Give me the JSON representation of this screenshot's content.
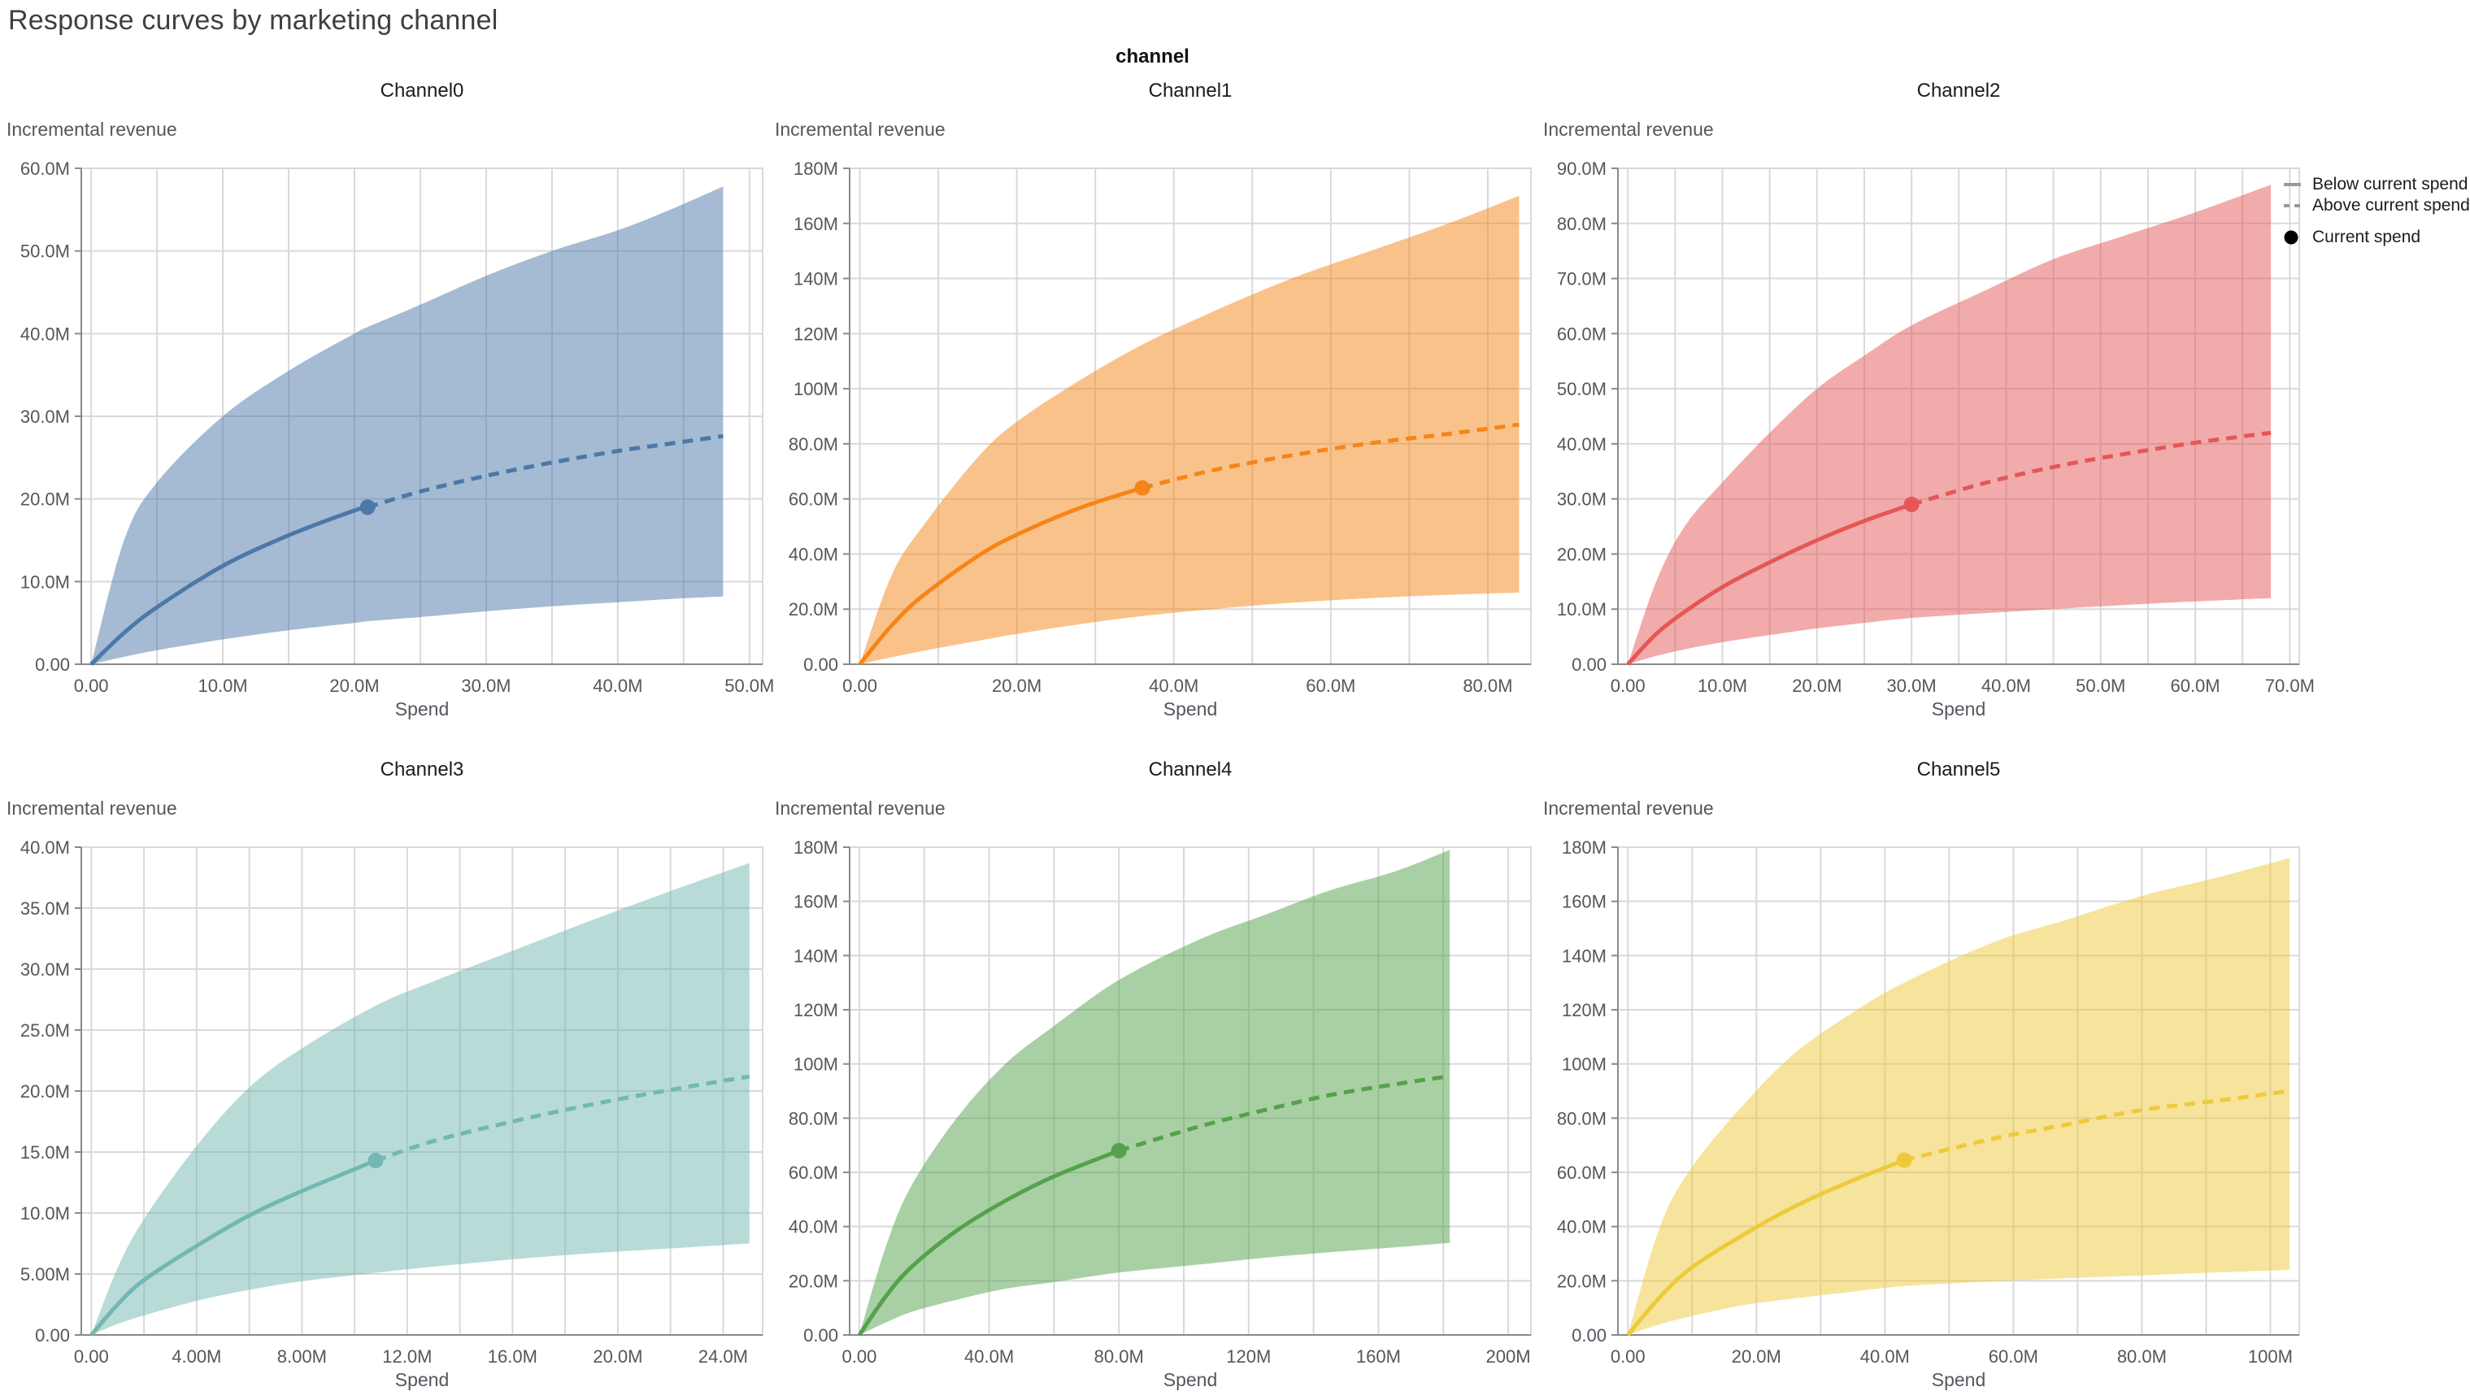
{
  "page": {
    "title": "Response curves by marketing channel",
    "facet_header": "channel"
  },
  "axis_titles": {
    "x": "Spend",
    "y": "Incremental revenue"
  },
  "legend": {
    "line_color": "#999999",
    "dot_color": "#000000",
    "items": [
      {
        "label": "Below current spend",
        "symbol": "solid-line"
      },
      {
        "label": "Above current spend",
        "symbol": "dashed-line"
      },
      {
        "label": "Current spend",
        "symbol": "dot"
      }
    ]
  },
  "style": {
    "grid_color": "#d9d9d9",
    "domain_color": "#8a8a8a",
    "tick_label_color": "#55565e",
    "axis_title_color": "#55565e",
    "subplot_title_color": "#1b1b1f",
    "band_opacity": 0.5,
    "line_width": 5,
    "dot_radius": 9.5,
    "dash_pattern": "13 9"
  },
  "chart_data": {
    "type": "line",
    "subtype": "response-curves-with-confidence-band",
    "units": "millions (M)",
    "title": "Response curves by marketing channel",
    "xlabel": "Spend",
    "ylabel": "Incremental revenue",
    "legend_entries": [
      "Below current spend",
      "Above current spend",
      "Current spend"
    ],
    "charts": [
      {
        "title": "Channel0",
        "color": "#4c78a8",
        "x_domain": [
          -0.75,
          51
        ],
        "y_domain": [
          0,
          60
        ],
        "x_ticks": {
          "values": [
            0,
            5,
            10,
            15,
            20,
            25,
            30,
            35,
            40,
            45,
            50
          ],
          "labels": [
            "0.00",
            "",
            "10.0M",
            "",
            "20.0M",
            "",
            "30.0M",
            "",
            "40.0M",
            "",
            "50.0M"
          ]
        },
        "y_ticks": {
          "values": [
            0,
            10,
            20,
            30,
            40,
            50,
            60
          ],
          "labels": [
            "0.00",
            "10.0M",
            "20.0M",
            "30.0M",
            "40.0M",
            "50.0M",
            "60.0M"
          ]
        },
        "current_spend": {
          "x": 21,
          "y": 19
        },
        "x": [
          0,
          2.5,
          5,
          10,
          15,
          20,
          21,
          25,
          30,
          35,
          40,
          44,
          48
        ],
        "mid": [
          0,
          3.8,
          6.9,
          11.9,
          15.6,
          18.6,
          19,
          20.9,
          22.8,
          24.4,
          25.8,
          26.7,
          27.6
        ],
        "upper": [
          0,
          15,
          22,
          30,
          35.5,
          40,
          40.8,
          43.5,
          47,
          50,
          52.5,
          55,
          57.8
        ],
        "lower": [
          0,
          0.9,
          1.7,
          3,
          4.1,
          5,
          5.2,
          5.7,
          6.4,
          7,
          7.5,
          7.9,
          8.2
        ]
      },
      {
        "title": "Channel1",
        "color": "#f58518",
        "x_domain": [
          -1.3,
          85.5
        ],
        "y_domain": [
          0,
          180
        ],
        "x_ticks": {
          "values": [
            0,
            10,
            20,
            30,
            40,
            50,
            60,
            70,
            80
          ],
          "labels": [
            "0.00",
            "",
            "20.0M",
            "",
            "40.0M",
            "",
            "60.0M",
            "",
            "80.0M"
          ]
        },
        "y_ticks": {
          "values": [
            0,
            20,
            40,
            60,
            80,
            100,
            120,
            140,
            160,
            180
          ],
          "labels": [
            "0.00",
            "20.0M",
            "40.0M",
            "60.0M",
            "80.0M",
            "100M",
            "120M",
            "140M",
            "160M",
            "180M"
          ]
        },
        "current_spend": {
          "x": 36,
          "y": 64
        },
        "x": [
          0,
          4,
          8,
          15,
          20,
          28,
          36,
          45,
          55,
          65,
          75,
          84
        ],
        "mid": [
          0,
          13.9,
          24.8,
          39.2,
          47,
          56.7,
          64,
          70.4,
          75.8,
          80.2,
          83.6,
          87
        ],
        "upper": [
          0,
          32,
          50,
          75,
          88,
          103,
          116,
          128,
          140,
          150,
          160,
          170
        ],
        "lower": [
          0,
          2.5,
          4.8,
          8.5,
          11,
          14.5,
          17.5,
          20,
          22.3,
          24,
          25.2,
          26
        ]
      },
      {
        "title": "Channel2",
        "color": "#e45756",
        "x_domain": [
          -1.05,
          71
        ],
        "y_domain": [
          0,
          90
        ],
        "x_ticks": {
          "values": [
            0,
            5,
            10,
            15,
            20,
            25,
            30,
            35,
            40,
            45,
            50,
            55,
            60,
            65,
            70
          ],
          "labels": [
            "0.00",
            "",
            "10.0M",
            "",
            "20.0M",
            "",
            "30.0M",
            "",
            "40.0M",
            "",
            "50.0M",
            "",
            "60.0M",
            "",
            "70.0M"
          ]
        },
        "y_ticks": {
          "values": [
            0,
            10,
            20,
            30,
            40,
            50,
            60,
            70,
            80,
            90
          ],
          "labels": [
            "0.00",
            "10.0M",
            "20.0M",
            "30.0M",
            "40.0M",
            "50.0M",
            "60.0M",
            "70.0M",
            "80.0M",
            "90.0M"
          ]
        },
        "current_spend": {
          "x": 30,
          "y": 29
        },
        "x": [
          0,
          3,
          6,
          10,
          15,
          20,
          25,
          30,
          38,
          45,
          52,
          60,
          68
        ],
        "mid": [
          0,
          5.5,
          9.5,
          14,
          18.5,
          22.5,
          26,
          29,
          33,
          35.8,
          38,
          40.2,
          42
        ],
        "upper": [
          0,
          15,
          25,
          33,
          42,
          50,
          56,
          61.5,
          68,
          73.5,
          77.5,
          82,
          87
        ],
        "lower": [
          0,
          1.5,
          2.7,
          4,
          5.3,
          6.5,
          7.5,
          8.4,
          9.3,
          10,
          10.7,
          11.4,
          12
        ]
      },
      {
        "title": "Channel3",
        "color": "#72b7b2",
        "x_domain": [
          -0.38,
          25.5
        ],
        "y_domain": [
          0,
          40
        ],
        "x_ticks": {
          "values": [
            0,
            2,
            4,
            6,
            8,
            10,
            12,
            14,
            16,
            18,
            20,
            22,
            24
          ],
          "labels": [
            "0.00",
            "",
            "4.00M",
            "",
            "8.00M",
            "",
            "12.0M",
            "",
            "16.0M",
            "",
            "20.0M",
            "",
            "24.0M"
          ]
        },
        "y_ticks": {
          "values": [
            0,
            5,
            10,
            15,
            20,
            25,
            30,
            35,
            40
          ],
          "labels": [
            "0.00",
            "5.00M",
            "10.0M",
            "15.0M",
            "20.0M",
            "25.0M",
            "30.0M",
            "35.0M",
            "40.0M"
          ]
        },
        "current_spend": {
          "x": 10.8,
          "y": 14.3
        },
        "x": [
          0,
          1,
          2,
          4,
          6,
          8,
          10.8,
          13,
          16,
          19,
          22,
          25
        ],
        "mid": [
          0,
          2.5,
          4.5,
          7.3,
          9.8,
          11.8,
          14.3,
          15.9,
          17.5,
          18.9,
          20.1,
          21.2
        ],
        "upper": [
          0,
          5.5,
          9.5,
          15.5,
          20.3,
          23.5,
          27,
          29,
          31.5,
          34,
          36.4,
          38.7
        ],
        "lower": [
          0,
          0.9,
          1.6,
          2.8,
          3.7,
          4.4,
          5.1,
          5.6,
          6.2,
          6.7,
          7.1,
          7.5
        ]
      },
      {
        "title": "Channel4",
        "color": "#54a24b",
        "x_domain": [
          -3,
          207
        ],
        "y_domain": [
          0,
          180
        ],
        "x_ticks": {
          "values": [
            0,
            20,
            40,
            60,
            80,
            100,
            120,
            140,
            160,
            180,
            200
          ],
          "labels": [
            "0.00",
            "",
            "40.0M",
            "",
            "80.0M",
            "",
            "120M",
            "",
            "160M",
            "",
            "200M"
          ]
        },
        "y_ticks": {
          "values": [
            0,
            20,
            40,
            60,
            80,
            100,
            120,
            140,
            160,
            180
          ],
          "labels": [
            "0.00",
            "20.0M",
            "40.0M",
            "60.0M",
            "80.0M",
            "100M",
            "120M",
            "140M",
            "160M",
            "180M"
          ]
        },
        "current_spend": {
          "x": 80,
          "y": 68
        },
        "x": [
          0,
          8,
          16,
          30,
          45,
          60,
          80,
          105,
          125,
          145,
          165,
          182
        ],
        "mid": [
          0,
          14,
          25,
          38.5,
          49.5,
          58.5,
          68,
          77,
          83,
          88.5,
          92.5,
          95.5
        ],
        "upper": [
          0,
          32,
          55,
          80,
          100,
          114,
          131,
          146,
          155,
          164,
          171,
          179
        ],
        "lower": [
          0,
          4.5,
          8.5,
          13,
          17,
          19.5,
          23,
          26,
          28.5,
          30.5,
          32.3,
          34
        ]
      },
      {
        "title": "Channel5",
        "color": "#eeca3b",
        "x_domain": [
          -1.55,
          104.5
        ],
        "y_domain": [
          0,
          180
        ],
        "x_ticks": {
          "values": [
            0,
            10,
            20,
            30,
            40,
            50,
            60,
            70,
            80,
            90,
            100
          ],
          "labels": [
            "0.00",
            "",
            "20.0M",
            "",
            "40.0M",
            "",
            "60.0M",
            "",
            "80.0M",
            "",
            "100M"
          ]
        },
        "y_ticks": {
          "values": [
            0,
            20,
            40,
            60,
            80,
            100,
            120,
            140,
            160,
            180
          ],
          "labels": [
            "0.00",
            "20.0M",
            "40.0M",
            "60.0M",
            "80.0M",
            "100M",
            "120M",
            "140M",
            "160M",
            "180M"
          ]
        },
        "current_spend": {
          "x": 43,
          "y": 64.5
        },
        "x": [
          0,
          5,
          10,
          18,
          26,
          35,
          43,
          57,
          68,
          80,
          92,
          103
        ],
        "mid": [
          0,
          14,
          25,
          37,
          47.5,
          57,
          64.5,
          72.5,
          77.5,
          83,
          86.5,
          90
        ],
        "upper": [
          0,
          40,
          62,
          85,
          104,
          119,
          130,
          145,
          153,
          162,
          169,
          176
        ],
        "lower": [
          0,
          4,
          7,
          11,
          13.5,
          16,
          18,
          19.8,
          20.9,
          22,
          23.1,
          24
        ]
      }
    ]
  }
}
